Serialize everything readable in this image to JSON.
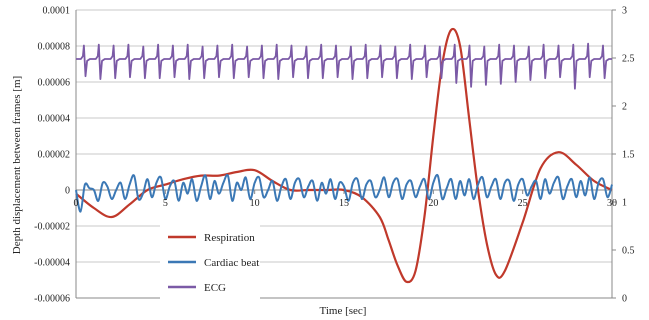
{
  "chart_data": {
    "type": "line",
    "title": "",
    "xlabel": "Time [sec]",
    "ylabel": "Depth displacement between frames [m]",
    "xlim": [
      0,
      30
    ],
    "ylim": [
      -6e-05,
      0.0001
    ],
    "y2lim": [
      0,
      3
    ],
    "grid": "horizontal",
    "legend_position": "bottom-left",
    "x_ticks": [
      "0",
      "5",
      "10",
      "15",
      "20",
      "25",
      "30"
    ],
    "y_ticks": [
      "-0.00006",
      "-0.00004",
      "-0.00002",
      "0",
      "0.00002",
      "0.00004",
      "0.00006",
      "0.00008",
      "0.0001"
    ],
    "y2_ticks": [
      "0",
      "0.5",
      "1",
      "1.5",
      "2",
      "2.5",
      "3"
    ],
    "series": [
      {
        "name": "Respiration",
        "axis": "left",
        "color": "#c0392b",
        "x": [
          0,
          1,
          2,
          3,
          4,
          5,
          6,
          7,
          8,
          9,
          10,
          11,
          12,
          13,
          14,
          15,
          16,
          17,
          17.5,
          18,
          18.5,
          19,
          19.5,
          20,
          20.5,
          21,
          21.5,
          22,
          22.5,
          23,
          23.5,
          24,
          25,
          26,
          27,
          28,
          29,
          30
        ],
        "y": [
          -2e-06,
          -1e-05,
          -1.5e-05,
          -8e-06,
          0.0,
          3e-06,
          6e-06,
          8e-06,
          8e-06,
          1e-05,
          1.1e-05,
          5e-06,
          0.0,
          0.0,
          0.0,
          0.0,
          -4e-06,
          -1.5e-05,
          -2.8e-05,
          -4.2e-05,
          -5.1e-05,
          -4.5e-05,
          -1.5e-05,
          3e-05,
          7e-05,
          8.9e-05,
          8e-05,
          4e-05,
          0.0,
          -3e-05,
          -4.7e-05,
          -4.5e-05,
          -1.8e-05,
          1.2e-05,
          2.1e-05,
          1.4e-05,
          5e-06,
          0.0
        ]
      },
      {
        "name": "Cardiac beat",
        "axis": "left",
        "color": "#3b78b5",
        "x": [
          0,
          0.25,
          0.5,
          0.75,
          1,
          1.25,
          1.5,
          1.75,
          2,
          2.25,
          2.5,
          2.75,
          3,
          3.25,
          3.5,
          3.75,
          4,
          4.25,
          4.5,
          4.75,
          5,
          5.25,
          5.5,
          5.75,
          6,
          6.25,
          6.5,
          6.75,
          7,
          7.25,
          7.5,
          7.75,
          8,
          8.25,
          8.5,
          8.75,
          9,
          9.25,
          9.5,
          9.75,
          10,
          10.25,
          10.5,
          10.75,
          11,
          11.25,
          11.5,
          11.75,
          12,
          12.25,
          12.5,
          12.75,
          13,
          13.25,
          13.5,
          13.75,
          14,
          14.25,
          14.5,
          14.75,
          15,
          15.25,
          15.5,
          15.75,
          16,
          16.25,
          16.5,
          16.75,
          17,
          17.25,
          17.5,
          17.75,
          18,
          18.25,
          18.5,
          18.75,
          19,
          19.25,
          19.5,
          19.75,
          20,
          20.25,
          20.5,
          20.75,
          21,
          21.25,
          21.5,
          21.75,
          22,
          22.25,
          22.5,
          22.75,
          23,
          23.25,
          23.5,
          23.75,
          24,
          24.25,
          24.5,
          24.75,
          25,
          25.25,
          25.5,
          25.75,
          26,
          26.25,
          26.5,
          26.75,
          27,
          27.25,
          27.5,
          27.75,
          28,
          28.25,
          28.5,
          28.75,
          29,
          29.25,
          29.5,
          29.75,
          30
        ],
        "y": [
          0.0,
          -1.2e-05,
          3e-06,
          1e-06,
          0.0,
          -6e-06,
          4e-06,
          2e-06,
          -5e-06,
          0.0,
          4e-06,
          -5e-06,
          3e-06,
          8e-06,
          -5e-06,
          -2e-06,
          6e-06,
          -4e-06,
          4e-06,
          7e-06,
          -5e-06,
          2e-06,
          5e-06,
          -6e-06,
          4e-06,
          -2e-06,
          6e-06,
          -6e-06,
          2e-06,
          8e-06,
          -5e-06,
          5e-06,
          -2e-06,
          4e-06,
          8e-06,
          -6e-06,
          4e-06,
          0.0,
          7e-06,
          -5e-06,
          4e-06,
          7e-06,
          -4e-06,
          0.0,
          5e-06,
          -6e-06,
          2e-06,
          6e-06,
          -5e-06,
          4e-06,
          6e-06,
          -4e-06,
          2e-06,
          5e-06,
          -6e-06,
          4e-06,
          -2e-06,
          6e-06,
          -5e-06,
          4e-06,
          2e-06,
          -6e-06,
          4e-06,
          6e-06,
          -5e-06,
          3e-06,
          5e-06,
          -4e-06,
          0.0,
          7e-06,
          -4e-06,
          4e-06,
          6e-06,
          -5e-06,
          3e-06,
          5e-06,
          -4e-06,
          2e-06,
          6e-06,
          -5e-06,
          4e-06,
          8e-06,
          -5e-06,
          1e-06,
          6e-06,
          -5e-06,
          5e-06,
          -3e-06,
          6e-06,
          -5e-06,
          3e-06,
          7e-06,
          -4e-06,
          2e-06,
          6e-06,
          -5e-06,
          4e-06,
          5e-06,
          -6e-06,
          3e-06,
          6e-06,
          -3e-06,
          2e-06,
          5e-06,
          -5e-06,
          6e-06,
          -2e-06,
          4e-06,
          7e-06,
          -5e-06,
          2e-06,
          6e-06,
          -4e-06,
          5e-06,
          -3e-06,
          7e-06,
          -5e-06,
          4e-06,
          6e-06,
          -4e-06,
          3e-06
        ]
      },
      {
        "name": "ECG",
        "axis": "right",
        "color": "#7b5aa6",
        "baseline": 2.49,
        "beats": [
          {
            "t": 0.5,
            "peak": 2.63,
            "trough": 2.31
          },
          {
            "t": 1.33,
            "peak": 2.64,
            "trough": 2.28
          },
          {
            "t": 2.16,
            "peak": 2.63,
            "trough": 2.29
          },
          {
            "t": 2.99,
            "peak": 2.64,
            "trough": 2.3
          },
          {
            "t": 3.82,
            "peak": 2.62,
            "trough": 2.29
          },
          {
            "t": 4.65,
            "peak": 2.64,
            "trough": 2.29
          },
          {
            "t": 5.48,
            "peak": 2.63,
            "trough": 2.3
          },
          {
            "t": 6.31,
            "peak": 2.64,
            "trough": 2.28
          },
          {
            "t": 7.14,
            "peak": 2.62,
            "trough": 2.29
          },
          {
            "t": 7.97,
            "peak": 2.63,
            "trough": 2.3
          },
          {
            "t": 8.8,
            "peak": 2.64,
            "trough": 2.29
          },
          {
            "t": 9.63,
            "peak": 2.62,
            "trough": 2.3
          },
          {
            "t": 10.46,
            "peak": 2.63,
            "trough": 2.29
          },
          {
            "t": 11.29,
            "peak": 2.64,
            "trough": 2.28
          },
          {
            "t": 12.12,
            "peak": 2.63,
            "trough": 2.3
          },
          {
            "t": 12.95,
            "peak": 2.62,
            "trough": 2.29
          },
          {
            "t": 13.78,
            "peak": 2.64,
            "trough": 2.29
          },
          {
            "t": 14.61,
            "peak": 2.63,
            "trough": 2.3
          },
          {
            "t": 15.44,
            "peak": 2.62,
            "trough": 2.28
          },
          {
            "t": 16.27,
            "peak": 2.64,
            "trough": 2.29
          },
          {
            "t": 17.1,
            "peak": 2.63,
            "trough": 2.3
          },
          {
            "t": 17.93,
            "peak": 2.62,
            "trough": 2.29
          },
          {
            "t": 18.76,
            "peak": 2.64,
            "trough": 2.28
          },
          {
            "t": 19.59,
            "peak": 2.63,
            "trough": 2.3
          },
          {
            "t": 20.42,
            "peak": 2.62,
            "trough": 2.29
          },
          {
            "t": 21.25,
            "peak": 2.64,
            "trough": 2.24
          },
          {
            "t": 22.08,
            "peak": 2.63,
            "trough": 2.2
          },
          {
            "t": 22.91,
            "peak": 2.62,
            "trough": 2.22
          },
          {
            "t": 23.74,
            "peak": 2.64,
            "trough": 2.23
          },
          {
            "t": 24.57,
            "peak": 2.63,
            "trough": 2.25
          },
          {
            "t": 25.4,
            "peak": 2.62,
            "trough": 2.27
          },
          {
            "t": 26.23,
            "peak": 2.64,
            "trough": 2.29
          },
          {
            "t": 27.06,
            "peak": 2.63,
            "trough": 2.3
          },
          {
            "t": 27.89,
            "peak": 2.64,
            "trough": 2.18
          },
          {
            "t": 28.72,
            "peak": 2.65,
            "trough": 2.3
          },
          {
            "t": 29.55,
            "peak": 2.63,
            "trough": 2.29
          }
        ]
      }
    ]
  }
}
